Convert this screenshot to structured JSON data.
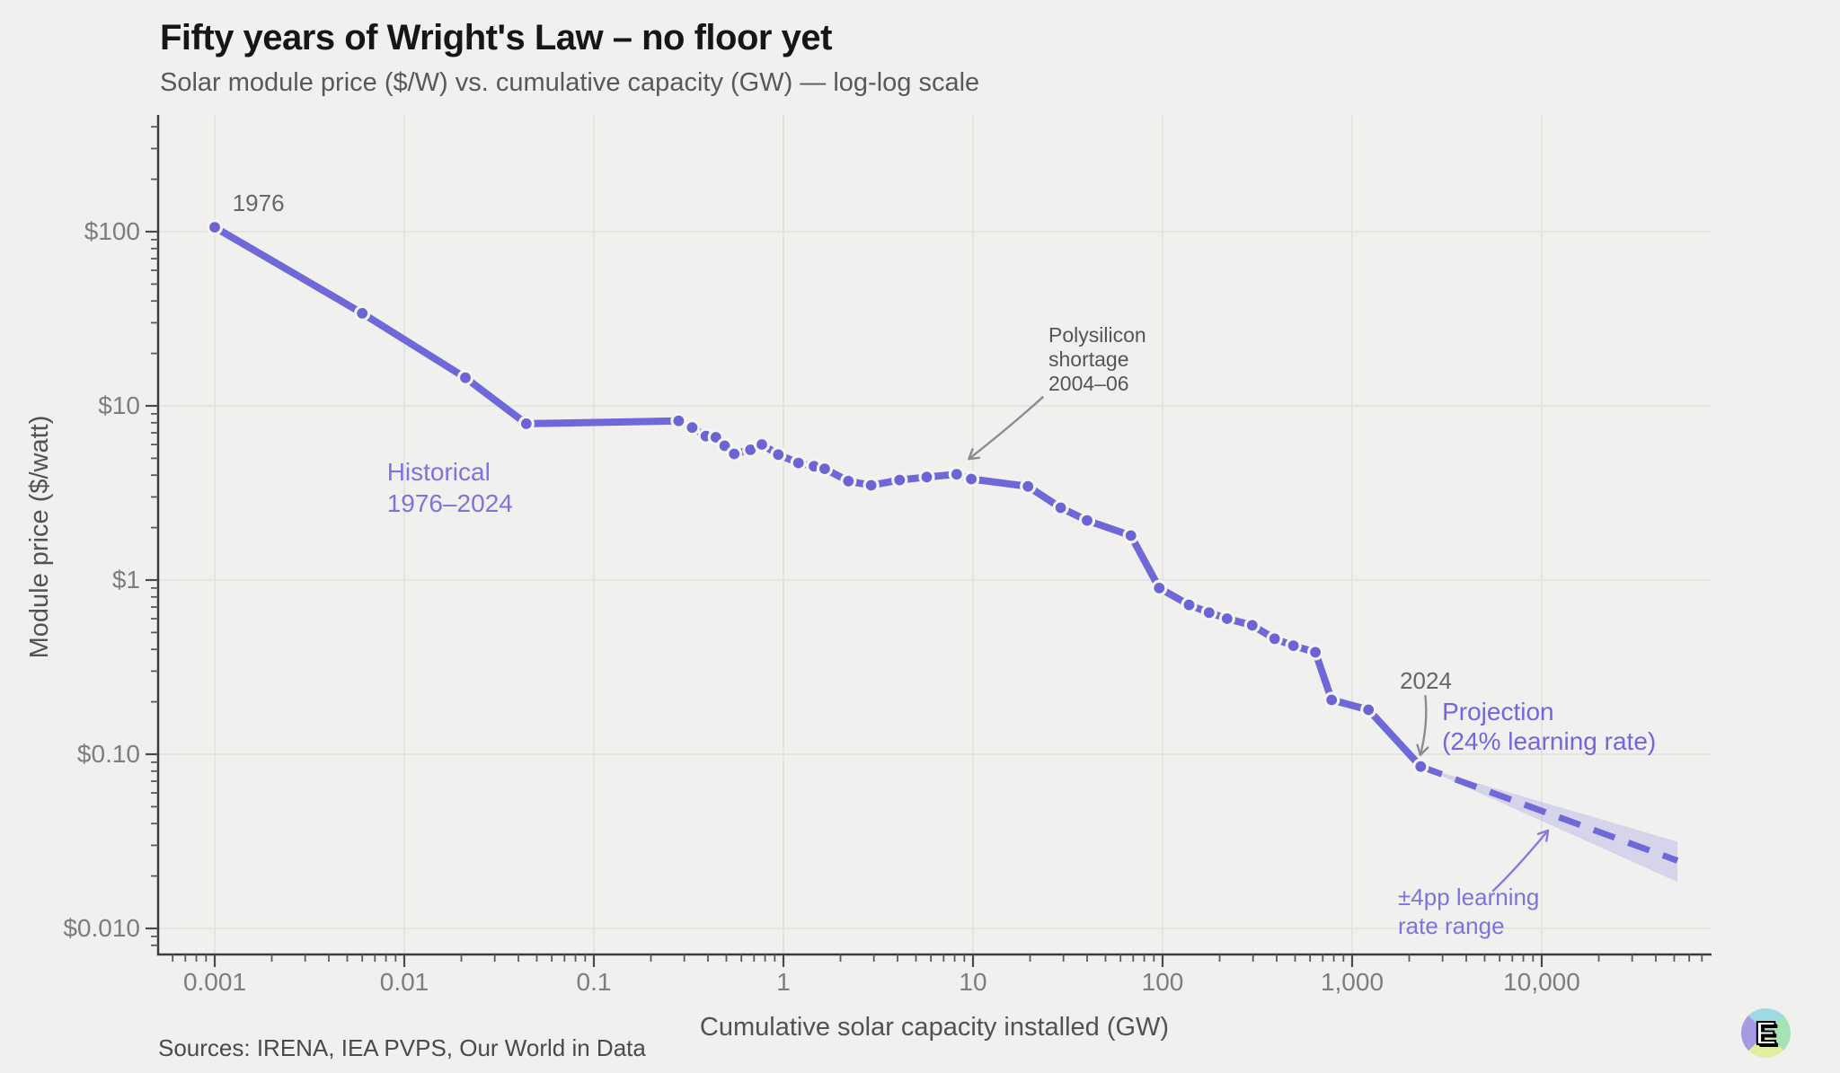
{
  "header": {
    "title": "Fifty years of Wright's Law – no floor yet",
    "subtitle": "Solar module price ($/W) vs. cumulative capacity (GW) — log-log scale"
  },
  "footer": {
    "sources": "Sources: IRENA, IEA PVPS, Our World in Data"
  },
  "logo": {
    "letter": "E",
    "quadrant_colors": {
      "top": "#9fd9e3",
      "right": "#a5e3b5",
      "bottom": "#e3eda1",
      "left": "#a79ae3"
    }
  },
  "colors": {
    "background": "#f0f0ee",
    "accent_line": "#6f68d8",
    "dot_fill": "#6a64d5",
    "dot_ring": "#f4f4f2",
    "band_fill": "#948ce6",
    "grid": "#e4e4e1",
    "axis": "#3c3c3c",
    "tick_label": "#7d7d7d"
  },
  "chart_data": {
    "type": "line",
    "scale": "log-log",
    "title": "Fifty years of Wright's Law – no floor yet",
    "subtitle": "Solar module price ($/W) vs. cumulative capacity (GW) — log-log scale",
    "xlabel": "Cumulative solar capacity installed (GW)",
    "ylabel": "Module price ($/watt)",
    "xlim": [
      0.0005,
      70000
    ],
    "ylim": [
      0.007,
      480
    ],
    "grid": true,
    "x_ticks": [
      {
        "value": 0.001,
        "label": "0.001"
      },
      {
        "value": 0.01,
        "label": "0.01"
      },
      {
        "value": 0.1,
        "label": "0.1"
      },
      {
        "value": 1,
        "label": "1"
      },
      {
        "value": 10,
        "label": "10"
      },
      {
        "value": 100,
        "label": "100"
      },
      {
        "value": 1000,
        "label": "1,000"
      },
      {
        "value": 10000,
        "label": "10,000"
      }
    ],
    "y_ticks": [
      {
        "value": 100,
        "label": "$100"
      },
      {
        "value": 10,
        "label": "$10"
      },
      {
        "value": 1,
        "label": "$1"
      },
      {
        "value": 0.1,
        "label": "$0.10"
      },
      {
        "value": 0.01,
        "label": "$0.010"
      }
    ],
    "series": [
      {
        "name": "Historical 1976–2024",
        "style": "solid",
        "color": "#6f68d8",
        "points_gw_price": [
          [
            0.001,
            106
          ],
          [
            0.006,
            34
          ],
          [
            0.021,
            14.5
          ],
          [
            0.044,
            7.9
          ],
          [
            0.28,
            8.2
          ],
          [
            0.33,
            7.5
          ],
          [
            0.39,
            6.7
          ],
          [
            0.44,
            6.6
          ],
          [
            0.49,
            5.9
          ],
          [
            0.55,
            5.3
          ],
          [
            0.67,
            5.6
          ],
          [
            0.77,
            6.0
          ],
          [
            0.94,
            5.25
          ],
          [
            1.2,
            4.7
          ],
          [
            1.45,
            4.5
          ],
          [
            1.65,
            4.35
          ],
          [
            2.2,
            3.7
          ],
          [
            2.9,
            3.5
          ],
          [
            4.1,
            3.75
          ],
          [
            5.7,
            3.9
          ],
          [
            8.2,
            4.05
          ],
          [
            9.8,
            3.8
          ],
          [
            19.5,
            3.45
          ],
          [
            29,
            2.6
          ],
          [
            40,
            2.2
          ],
          [
            68,
            1.8
          ],
          [
            96,
            0.9
          ],
          [
            138,
            0.72
          ],
          [
            176,
            0.65
          ],
          [
            219,
            0.6
          ],
          [
            297,
            0.55
          ],
          [
            390,
            0.46
          ],
          [
            490,
            0.42
          ],
          [
            640,
            0.385
          ],
          [
            780,
            0.205
          ],
          [
            1220,
            0.18
          ],
          [
            2300,
            0.085
          ]
        ]
      },
      {
        "name": "Projection (24% learning rate)",
        "style": "dashed",
        "color": "#6f68d8",
        "points_gw_price": [
          [
            2300,
            0.085
          ],
          [
            52000,
            0.0245
          ]
        ],
        "band": {
          "label": "±4pp learning rate range",
          "hi_end_gw_price": [
            52000,
            0.0315
          ],
          "lo_end_gw_price": [
            52000,
            0.0185
          ],
          "fill": "#948ce6"
        }
      }
    ],
    "annotations": [
      {
        "id": "label-1976",
        "lines": [
          "1976"
        ],
        "x": 0.00124,
        "y": 131,
        "anchor": "start",
        "color": "#666666",
        "size": 26,
        "line_height": 32
      },
      {
        "id": "label-2024",
        "lines": [
          "2024"
        ],
        "x": 2448,
        "y": 0.238,
        "anchor": "middle",
        "color": "#666666",
        "size": 26,
        "line_height": 32
      },
      {
        "id": "label-historical",
        "lines": [
          "Historical",
          "1976–2024"
        ],
        "x": 0.0081,
        "y": 3.73,
        "anchor": "start",
        "color": "#7c74de",
        "size": 28,
        "line_height": 35
      },
      {
        "id": "label-projection",
        "lines": [
          "Projection",
          "(24% learning rate)"
        ],
        "x": 2980,
        "y": 0.157,
        "anchor": "start",
        "color": "#7166e0",
        "size": 28,
        "line_height": 33
      },
      {
        "id": "label-polysilicon",
        "lines": [
          "Polysilicon",
          "shortage",
          "2004–06"
        ],
        "x": 25,
        "y": 23.2,
        "anchor": "start",
        "color": "#555555",
        "size": 23,
        "line_height": 27
      },
      {
        "id": "label-band",
        "lines": [
          "±4pp learning",
          "rate range"
        ],
        "x": 1745,
        "y": 0.0136,
        "anchor": "start",
        "color": "#7c74de",
        "size": 26,
        "line_height": 32
      }
    ],
    "arrows": [
      {
        "id": "arrow-2024",
        "from": [
          2430,
          0.218
        ],
        "ctrl": [
          2520,
          0.148
        ],
        "to": [
          2290,
          0.099
        ],
        "color": "#8c8c8c"
      },
      {
        "id": "arrow-polysilicon",
        "from": [
          23.5,
          11.3
        ],
        "ctrl": [
          15.5,
          7.5
        ],
        "to": [
          9.5,
          4.95
        ],
        "color": "#8c8c8c"
      },
      {
        "id": "arrow-band",
        "from": [
          5500,
          0.0163
        ],
        "ctrl": [
          7200,
          0.0215
        ],
        "to": [
          10800,
          0.0365
        ],
        "color": "#837bdf"
      }
    ]
  }
}
